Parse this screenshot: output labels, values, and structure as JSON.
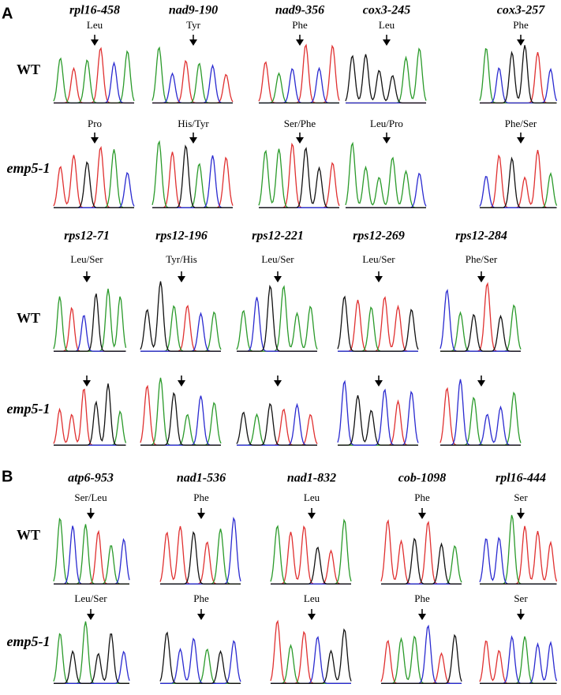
{
  "panels": [
    {
      "label": "A",
      "groups": [
        {
          "genes": [
            "rpl16-458",
            "nad9-190",
            "nad9-356",
            "cox3-245",
            "cox3-257"
          ],
          "rows": [
            {
              "label": "WT",
              "residues": [
                "Leu",
                "Tyr",
                "Phe",
                "Leu",
                "Phe"
              ]
            },
            {
              "label": "emp5-1",
              "residues": [
                "Pro",
                "His/Tyr",
                "Ser/Phe",
                "Leu/Pro",
                "Phe/Ser"
              ]
            }
          ]
        },
        {
          "genes": [
            "rps12-71",
            "rps12-196",
            "rps12-221",
            "rps12-269",
            "rps12-284"
          ],
          "rows": [
            {
              "label": "WT",
              "residues": [
                "Leu/Ser",
                "Tyr/His",
                "Leu/Ser",
                "Leu/Ser",
                "Phe/Ser"
              ]
            },
            {
              "label": "emp5-1"
            }
          ]
        }
      ]
    },
    {
      "label": "B",
      "groups": [
        {
          "genes": [
            "atp6-953",
            "nad1-536",
            "nad1-832",
            "cob-1098",
            "rpl16-444"
          ],
          "rows": [
            {
              "label": "WT",
              "residues": [
                "Ser/Leu",
                "Phe",
                "Leu",
                "Phe",
                "Ser"
              ]
            },
            {
              "label": "emp5-1",
              "residues": [
                "Leu/Ser",
                "Phe",
                "Leu",
                "Phe",
                "Ser"
              ]
            }
          ]
        }
      ]
    }
  ]
}
